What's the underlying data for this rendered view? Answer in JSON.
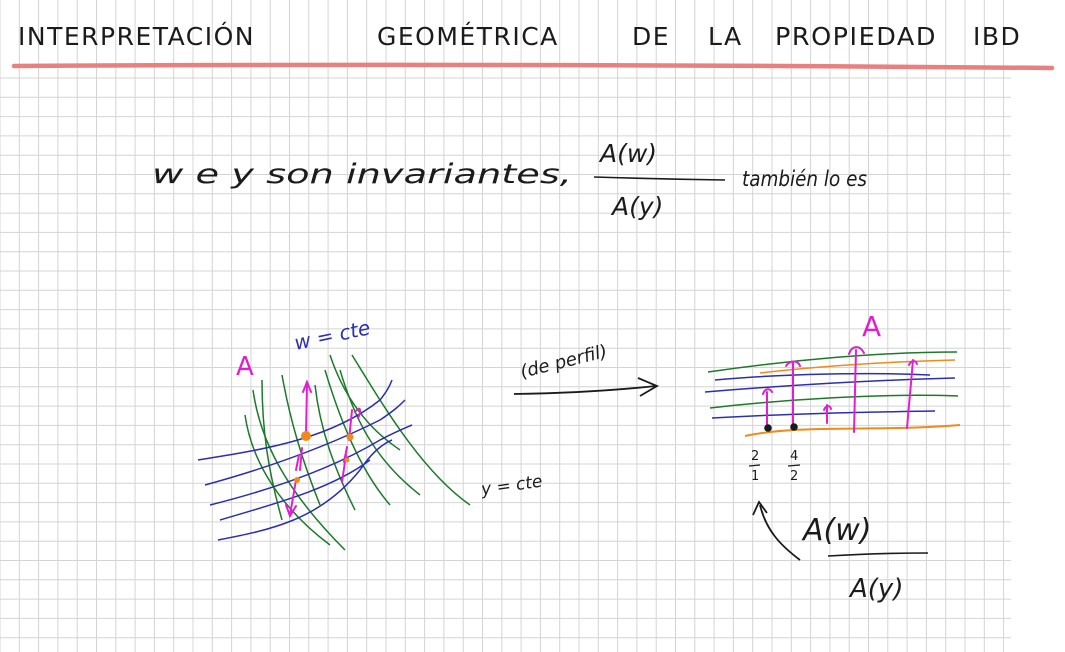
{
  "title": {
    "words": [
      "INTERPRETACIÓN",
      "GEOMÉTRICA",
      "DE",
      "LA",
      "PROPIEDAD",
      "IBD"
    ],
    "underline_color": "#e88080"
  },
  "statement": {
    "text": "w e y son invariantes,",
    "fraction_numerator": "A(w)",
    "fraction_denominator": "A(y)",
    "suffix": "también lo es"
  },
  "left_diagram": {
    "axis_letter": "A",
    "w_label": "w = cte",
    "y_label": "y = cte"
  },
  "transition": {
    "label": "(de perfil)"
  },
  "right_diagram": {
    "axis_letter": "A",
    "tick_left": {
      "num": "2",
      "den": "1"
    },
    "tick_right": {
      "num": "4",
      "den": "2"
    },
    "fraction_numerator": "A(w)",
    "fraction_denominator": "A(y)"
  },
  "colors": {
    "ink_dark": "#1b1b1b",
    "blue": "#2b2fb0",
    "green": "#1d7a2a",
    "magenta": "#e020d0",
    "orange": "#f08a1a",
    "grid": "#d4d4d4",
    "accent_underline": "#e88080"
  }
}
